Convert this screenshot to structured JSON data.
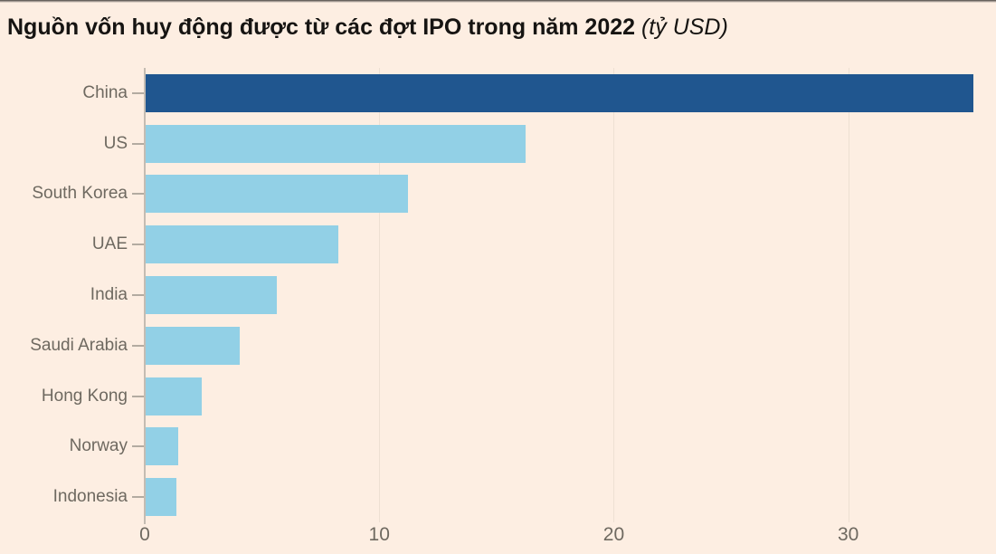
{
  "frame": {
    "background": "#fdeee2",
    "top_border_color": "#4a4743"
  },
  "title": {
    "text": "Nguồn vốn huy động được từ các đợt IPO trong năm 2022",
    "unit_suffix": " (tỷ USD)"
  },
  "chart_data": {
    "type": "bar",
    "orientation": "horizontal",
    "title": "Nguồn vốn huy động được từ các đợt IPO trong năm 2022",
    "unit_label": "tỷ USD",
    "categories": [
      "China",
      "US",
      "South Korea",
      "UAE",
      "India",
      "Saudi Arabia",
      "Hong Kong",
      "Norway",
      "Indonesia"
    ],
    "values": [
      35.3,
      16.2,
      11.2,
      8.2,
      5.6,
      4.0,
      2.4,
      1.4,
      1.3
    ],
    "xlim": [
      0,
      36.3
    ],
    "xticks": [
      0,
      10,
      20,
      30
    ],
    "grid": "vertical-light-gridlines",
    "legend": "none",
    "ylabel": "",
    "xlabel": "",
    "bar_color": "#92d0e6",
    "highlight_color": "#20568f",
    "highlight_category": "China",
    "axis_line_color": "#c4bcb2",
    "gridline_color": "#eee0d3",
    "tick_mark_color": "#b3aba1",
    "label_color": "#6e6960"
  }
}
